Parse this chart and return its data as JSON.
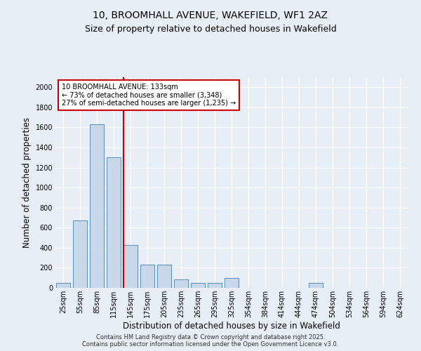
{
  "title_line1": "10, BROOMHALL AVENUE, WAKEFIELD, WF1 2AZ",
  "title_line2": "Size of property relative to detached houses in Wakefield",
  "xlabel": "Distribution of detached houses by size in Wakefield",
  "ylabel": "Number of detached properties",
  "categories": [
    "25sqm",
    "55sqm",
    "85sqm",
    "115sqm",
    "145sqm",
    "175sqm",
    "205sqm",
    "235sqm",
    "265sqm",
    "295sqm",
    "325sqm",
    "354sqm",
    "384sqm",
    "414sqm",
    "444sqm",
    "474sqm",
    "504sqm",
    "534sqm",
    "564sqm",
    "594sqm",
    "624sqm"
  ],
  "values": [
    50,
    670,
    1630,
    1305,
    430,
    230,
    230,
    85,
    50,
    50,
    95,
    0,
    0,
    0,
    0,
    50,
    0,
    0,
    0,
    0,
    0
  ],
  "bar_color": "#c8d8e8",
  "bar_edge_color": "#5b8db8",
  "vline_color": "#cc0000",
  "annotation_text": "10 BROOMHALL AVENUE: 133sqm\n← 73% of detached houses are smaller (3,348)\n27% of semi-detached houses are larger (1,235) →",
  "annotation_box_color": "white",
  "annotation_box_edge": "#cc0000",
  "ylim": [
    0,
    2100
  ],
  "yticks": [
    0,
    200,
    400,
    600,
    800,
    1000,
    1200,
    1400,
    1600,
    1800,
    2000
  ],
  "background_color": "#e8eef5",
  "footer_text": "Contains HM Land Registry data © Crown copyright and database right 2025.\nContains public sector information licensed under the Open Government Licence v3.0.",
  "title_fontsize": 10,
  "subtitle_fontsize": 9,
  "tick_fontsize": 7,
  "label_fontsize": 8.5,
  "footer_fontsize": 6
}
